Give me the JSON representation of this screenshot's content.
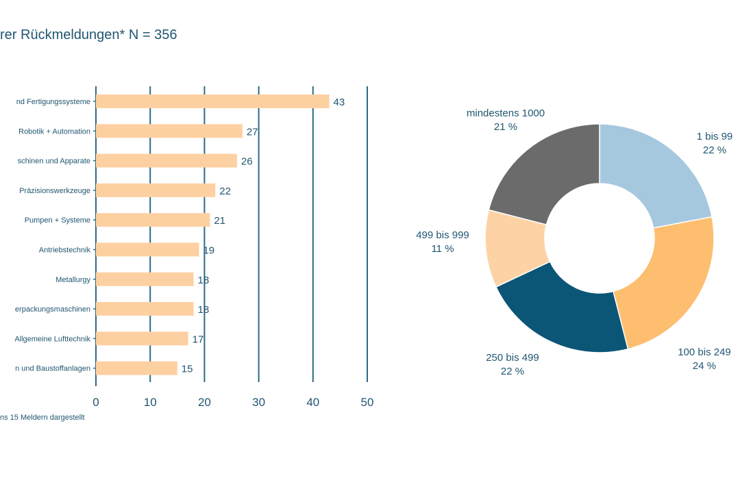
{
  "header": {
    "title": "rer Rückmeldungen* N = 356"
  },
  "footnote": "ns 15 Meldern dargestellt",
  "chart_data": [
    {
      "type": "bar",
      "orientation": "horizontal",
      "categories": [
        "nd Fertigungssysteme",
        "Robotik + Automation",
        "schinen und Apparate",
        "Präzisionswerkzeuge",
        "Pumpen + Systeme",
        "Antriebstechnik",
        "Metallurgy",
        "erpackungsmaschinen",
        "Allgemeine Lufttechnik",
        "n und Baustoffanlagen"
      ],
      "values": [
        43,
        27,
        26,
        22,
        21,
        19,
        18,
        18,
        17,
        15
      ],
      "xlim": [
        0,
        50
      ],
      "xticks": [
        0,
        10,
        20,
        30,
        40,
        50
      ],
      "grid": true,
      "colors": {
        "bar": "#fdd0a2",
        "axis": "#2b6a85"
      }
    },
    {
      "type": "pie",
      "style": "donut",
      "slices": [
        {
          "label": "1 bis 99",
          "percent_label": "22 %",
          "value": 22,
          "color": "#a6c8df"
        },
        {
          "label": "100 bis 249",
          "percent_label": "24 %",
          "value": 24,
          "color": "#fdbe6f"
        },
        {
          "label": "250 bis 499",
          "percent_label": "22 %",
          "value": 22,
          "color": "#0b5577"
        },
        {
          "label": "499 bis 999",
          "percent_label": "11 %",
          "value": 11,
          "color": "#fdd3a6"
        },
        {
          "label": "mindestens 1000",
          "percent_label": "21 %",
          "value": 21,
          "color": "#6b6b6b"
        }
      ]
    }
  ]
}
